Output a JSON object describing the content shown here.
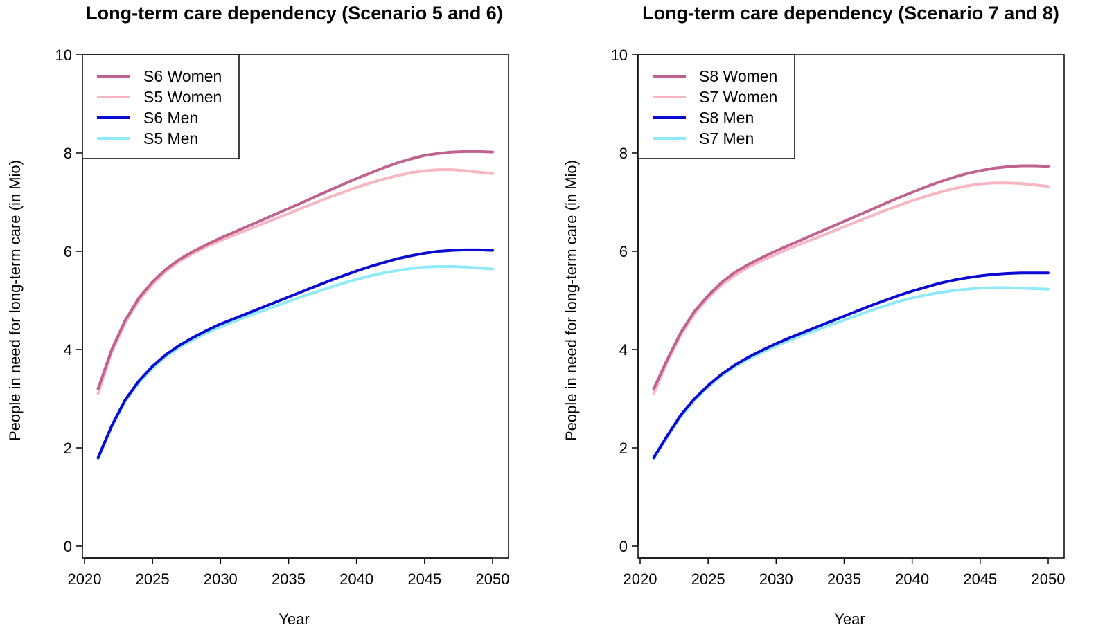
{
  "chart_data": [
    {
      "type": "line",
      "title": "Long-term care dependency (Scenario 5 and 6)",
      "xlabel": "Year",
      "ylabel": "People in need for long-term care (in Mio)",
      "xlim": [
        2020,
        2050
      ],
      "ylim": [
        0,
        10
      ],
      "xticks": [
        "2020",
        "2025",
        "2030",
        "2035",
        "2040",
        "2045",
        "2050"
      ],
      "yticks": [
        "0",
        "2",
        "4",
        "6",
        "8",
        "10"
      ],
      "legend_position": "top-left",
      "x": [
        2021,
        2022,
        2023,
        2024,
        2025,
        2026,
        2027,
        2028,
        2029,
        2030,
        2031,
        2032,
        2033,
        2034,
        2035,
        2036,
        2037,
        2038,
        2039,
        2040,
        2041,
        2042,
        2043,
        2044,
        2045,
        2046,
        2047,
        2048,
        2049,
        2050
      ],
      "series": [
        {
          "name": "S6 Women",
          "color": "#c0628f",
          "values": [
            3.2,
            4.0,
            4.6,
            5.05,
            5.38,
            5.64,
            5.84,
            6.0,
            6.14,
            6.27,
            6.39,
            6.51,
            6.63,
            6.75,
            6.87,
            6.99,
            7.12,
            7.24,
            7.36,
            7.48,
            7.59,
            7.7,
            7.8,
            7.88,
            7.95,
            7.99,
            8.02,
            8.03,
            8.03,
            8.02
          ]
        },
        {
          "name": "S5 Women",
          "color": "#f7b6c2",
          "values": [
            3.1,
            3.95,
            4.55,
            5.0,
            5.33,
            5.6,
            5.8,
            5.96,
            6.1,
            6.22,
            6.33,
            6.44,
            6.55,
            6.66,
            6.77,
            6.88,
            6.99,
            7.1,
            7.2,
            7.3,
            7.39,
            7.47,
            7.54,
            7.6,
            7.64,
            7.66,
            7.66,
            7.64,
            7.61,
            7.58
          ]
        },
        {
          "name": "S6 Men",
          "color": "#0a0ad2",
          "values": [
            1.8,
            2.45,
            2.98,
            3.36,
            3.66,
            3.9,
            4.09,
            4.25,
            4.39,
            4.52,
            4.63,
            4.74,
            4.85,
            4.96,
            5.07,
            5.18,
            5.29,
            5.4,
            5.5,
            5.6,
            5.69,
            5.77,
            5.85,
            5.91,
            5.96,
            6.0,
            6.02,
            6.03,
            6.03,
            6.02
          ]
        },
        {
          "name": "S5 Men",
          "color": "#8ee9fa",
          "values": [
            1.78,
            2.42,
            2.95,
            3.33,
            3.62,
            3.86,
            4.05,
            4.2,
            4.34,
            4.46,
            4.57,
            4.68,
            4.78,
            4.88,
            4.98,
            5.08,
            5.17,
            5.26,
            5.35,
            5.43,
            5.5,
            5.56,
            5.61,
            5.65,
            5.68,
            5.69,
            5.69,
            5.68,
            5.66,
            5.64
          ]
        }
      ]
    },
    {
      "type": "line",
      "title": "Long-term care dependency (Scenario 7 and 8)",
      "xlabel": "Year",
      "ylabel": "People in need for long-term care (in Mio)",
      "xlim": [
        2020,
        2050
      ],
      "ylim": [
        0,
        10
      ],
      "xticks": [
        "2020",
        "2025",
        "2030",
        "2035",
        "2040",
        "2045",
        "2050"
      ],
      "yticks": [
        "0",
        "2",
        "4",
        "6",
        "8",
        "10"
      ],
      "legend_position": "top-left",
      "x": [
        2021,
        2022,
        2023,
        2024,
        2025,
        2026,
        2027,
        2028,
        2029,
        2030,
        2031,
        2032,
        2033,
        2034,
        2035,
        2036,
        2037,
        2038,
        2039,
        2040,
        2041,
        2042,
        2043,
        2044,
        2045,
        2046,
        2047,
        2048,
        2049,
        2050
      ],
      "series": [
        {
          "name": "S8 Women",
          "color": "#c0628f",
          "values": [
            3.2,
            3.8,
            4.35,
            4.78,
            5.1,
            5.37,
            5.58,
            5.74,
            5.88,
            6.01,
            6.13,
            6.25,
            6.37,
            6.49,
            6.61,
            6.73,
            6.85,
            6.97,
            7.09,
            7.2,
            7.31,
            7.41,
            7.5,
            7.58,
            7.64,
            7.69,
            7.72,
            7.74,
            7.74,
            7.73
          ]
        },
        {
          "name": "S7 Women",
          "color": "#f7b6c2",
          "values": [
            3.1,
            3.75,
            4.3,
            4.73,
            5.05,
            5.32,
            5.52,
            5.68,
            5.82,
            5.94,
            6.06,
            6.17,
            6.28,
            6.39,
            6.5,
            6.61,
            6.72,
            6.83,
            6.93,
            7.03,
            7.12,
            7.2,
            7.27,
            7.33,
            7.37,
            7.39,
            7.39,
            7.38,
            7.35,
            7.32
          ]
        },
        {
          "name": "S8 Men",
          "color": "#0a0ad2",
          "values": [
            1.8,
            2.25,
            2.67,
            3.0,
            3.27,
            3.5,
            3.69,
            3.85,
            3.99,
            4.12,
            4.24,
            4.35,
            4.46,
            4.57,
            4.68,
            4.79,
            4.9,
            5.0,
            5.1,
            5.19,
            5.27,
            5.35,
            5.41,
            5.46,
            5.5,
            5.53,
            5.55,
            5.56,
            5.56,
            5.56
          ]
        },
        {
          "name": "S7 Men",
          "color": "#8ee9fa",
          "values": [
            1.78,
            2.22,
            2.64,
            2.97,
            3.24,
            3.47,
            3.66,
            3.81,
            3.95,
            4.07,
            4.19,
            4.3,
            4.4,
            4.5,
            4.6,
            4.7,
            4.8,
            4.89,
            4.98,
            5.05,
            5.11,
            5.16,
            5.2,
            5.23,
            5.25,
            5.26,
            5.26,
            5.25,
            5.24,
            5.23
          ]
        }
      ]
    }
  ]
}
